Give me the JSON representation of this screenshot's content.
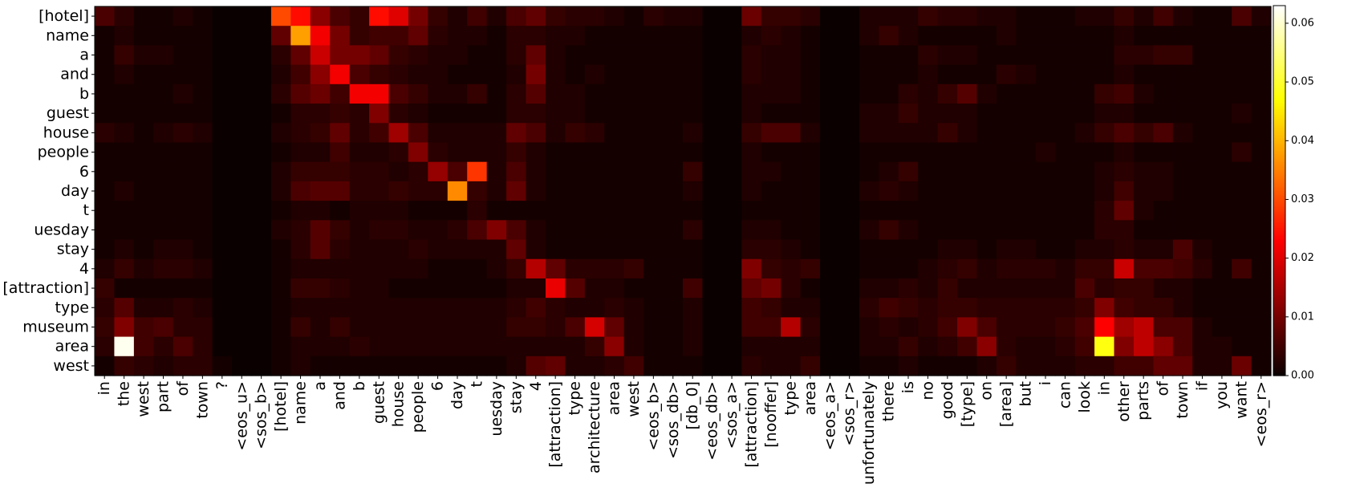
{
  "chart_data": {
    "type": "heatmap",
    "colormap": "hot",
    "vmin": 0.0,
    "vmax": 0.063,
    "grid": false,
    "colorbar_position": "right",
    "rows": [
      "[hotel]",
      "name",
      "a",
      "and",
      "b",
      "guest",
      "house",
      "people",
      "6",
      "day",
      "t",
      "uesday",
      "stay",
      "4",
      "[attraction]",
      "type",
      "museum",
      "area",
      "west"
    ],
    "columns": [
      "in",
      "the",
      "west",
      "part",
      "of",
      "town",
      "?",
      "<eos_u>",
      "<sos_b>",
      "[hotel]",
      "name",
      "a",
      "and",
      "b",
      "guest",
      "house",
      "people",
      "6",
      "day",
      "t",
      "uesday",
      "stay",
      "4",
      "[attraction]",
      "type",
      "architecture",
      "area",
      "west",
      "<eos_b>",
      "<sos_db>",
      "[db_0]",
      "<eos_db>",
      "<sos_a>",
      "[attraction]",
      "[nooffer]",
      "type",
      "area",
      "<eos_a>",
      "<sos_r>",
      "unfortunately",
      "there",
      "is",
      "no",
      "good",
      "[type]",
      "on",
      "[area]",
      "but",
      "i",
      "can",
      "look",
      "in",
      "other",
      "parts",
      "of",
      "town",
      "if",
      "you",
      "want",
      "<eos_r>"
    ],
    "colorbar_ticks": [
      "0.00",
      "0.01",
      "0.02",
      "0.03",
      "0.04",
      "0.05",
      "0.06"
    ],
    "values": [
      [
        0.006,
        0.003,
        0.001,
        0.001,
        0.002,
        0.001,
        0.0,
        0.0,
        0.0,
        0.03,
        0.024,
        0.012,
        0.006,
        0.004,
        0.024,
        0.02,
        0.01,
        0.004,
        0.002,
        0.005,
        0.002,
        0.006,
        0.008,
        0.004,
        0.003,
        0.003,
        0.002,
        0.001,
        0.003,
        0.002,
        0.002,
        0.0,
        0.0,
        0.009,
        0.004,
        0.004,
        0.003,
        0.0,
        0.0,
        0.002,
        0.002,
        0.002,
        0.004,
        0.003,
        0.003,
        0.002,
        0.002,
        0.001,
        0.001,
        0.001,
        0.002,
        0.002,
        0.004,
        0.002,
        0.005,
        0.002,
        0.001,
        0.001,
        0.006,
        0.002
      ],
      [
        0.001,
        0.002,
        0.001,
        0.001,
        0.001,
        0.001,
        0.0,
        0.0,
        0.0,
        0.008,
        0.038,
        0.022,
        0.01,
        0.004,
        0.005,
        0.005,
        0.008,
        0.003,
        0.002,
        0.002,
        0.001,
        0.003,
        0.003,
        0.002,
        0.002,
        0.001,
        0.001,
        0.001,
        0.001,
        0.001,
        0.001,
        0.0,
        0.0,
        0.002,
        0.003,
        0.002,
        0.001,
        0.0,
        0.0,
        0.002,
        0.004,
        0.002,
        0.001,
        0.001,
        0.001,
        0.001,
        0.002,
        0.001,
        0.001,
        0.001,
        0.001,
        0.001,
        0.002,
        0.001,
        0.001,
        0.001,
        0.001,
        0.001,
        0.001,
        0.001
      ],
      [
        0.001,
        0.004,
        0.002,
        0.002,
        0.001,
        0.001,
        0.0,
        0.0,
        0.0,
        0.003,
        0.008,
        0.018,
        0.01,
        0.01,
        0.008,
        0.004,
        0.003,
        0.002,
        0.002,
        0.001,
        0.001,
        0.003,
        0.008,
        0.002,
        0.001,
        0.001,
        0.001,
        0.001,
        0.001,
        0.001,
        0.001,
        0.0,
        0.0,
        0.003,
        0.002,
        0.002,
        0.001,
        0.0,
        0.0,
        0.001,
        0.001,
        0.001,
        0.003,
        0.002,
        0.002,
        0.001,
        0.001,
        0.001,
        0.001,
        0.001,
        0.001,
        0.001,
        0.003,
        0.003,
        0.004,
        0.004,
        0.001,
        0.001,
        0.001,
        0.001
      ],
      [
        0.001,
        0.002,
        0.001,
        0.001,
        0.001,
        0.001,
        0.0,
        0.0,
        0.0,
        0.002,
        0.005,
        0.012,
        0.022,
        0.006,
        0.004,
        0.003,
        0.002,
        0.002,
        0.001,
        0.001,
        0.001,
        0.002,
        0.01,
        0.002,
        0.001,
        0.002,
        0.001,
        0.001,
        0.001,
        0.001,
        0.001,
        0.0,
        0.0,
        0.003,
        0.002,
        0.002,
        0.001,
        0.0,
        0.0,
        0.001,
        0.001,
        0.001,
        0.002,
        0.001,
        0.001,
        0.001,
        0.003,
        0.002,
        0.001,
        0.001,
        0.001,
        0.001,
        0.002,
        0.001,
        0.001,
        0.001,
        0.001,
        0.001,
        0.001,
        0.001
      ],
      [
        0.001,
        0.001,
        0.001,
        0.001,
        0.002,
        0.001,
        0.0,
        0.0,
        0.0,
        0.003,
        0.007,
        0.009,
        0.005,
        0.022,
        0.022,
        0.006,
        0.004,
        0.002,
        0.002,
        0.004,
        0.001,
        0.003,
        0.007,
        0.002,
        0.002,
        0.001,
        0.001,
        0.001,
        0.001,
        0.001,
        0.001,
        0.0,
        0.0,
        0.002,
        0.002,
        0.002,
        0.001,
        0.0,
        0.0,
        0.001,
        0.001,
        0.003,
        0.002,
        0.004,
        0.007,
        0.002,
        0.001,
        0.001,
        0.001,
        0.001,
        0.001,
        0.004,
        0.005,
        0.002,
        0.001,
        0.001,
        0.001,
        0.001,
        0.001,
        0.001
      ],
      [
        0.001,
        0.001,
        0.001,
        0.001,
        0.001,
        0.001,
        0.0,
        0.0,
        0.0,
        0.001,
        0.003,
        0.003,
        0.004,
        0.003,
        0.011,
        0.003,
        0.002,
        0.001,
        0.001,
        0.001,
        0.001,
        0.003,
        0.003,
        0.002,
        0.002,
        0.001,
        0.001,
        0.001,
        0.001,
        0.001,
        0.001,
        0.0,
        0.0,
        0.002,
        0.001,
        0.001,
        0.001,
        0.0,
        0.0,
        0.002,
        0.002,
        0.004,
        0.002,
        0.002,
        0.002,
        0.001,
        0.001,
        0.001,
        0.001,
        0.001,
        0.001,
        0.002,
        0.002,
        0.001,
        0.001,
        0.001,
        0.001,
        0.001,
        0.002,
        0.001
      ],
      [
        0.003,
        0.002,
        0.001,
        0.002,
        0.003,
        0.002,
        0.0,
        0.0,
        0.0,
        0.002,
        0.003,
        0.004,
        0.008,
        0.003,
        0.005,
        0.014,
        0.006,
        0.002,
        0.002,
        0.002,
        0.002,
        0.008,
        0.006,
        0.002,
        0.004,
        0.003,
        0.001,
        0.001,
        0.001,
        0.001,
        0.002,
        0.0,
        0.0,
        0.004,
        0.006,
        0.006,
        0.002,
        0.0,
        0.0,
        0.002,
        0.002,
        0.002,
        0.002,
        0.004,
        0.002,
        0.001,
        0.001,
        0.001,
        0.001,
        0.001,
        0.002,
        0.004,
        0.006,
        0.004,
        0.006,
        0.002,
        0.001,
        0.001,
        0.001,
        0.001
      ],
      [
        0.001,
        0.001,
        0.001,
        0.001,
        0.001,
        0.001,
        0.0,
        0.0,
        0.0,
        0.001,
        0.002,
        0.002,
        0.005,
        0.002,
        0.002,
        0.003,
        0.011,
        0.003,
        0.002,
        0.002,
        0.002,
        0.004,
        0.002,
        0.001,
        0.001,
        0.001,
        0.001,
        0.001,
        0.001,
        0.001,
        0.001,
        0.0,
        0.0,
        0.002,
        0.001,
        0.001,
        0.001,
        0.0,
        0.0,
        0.001,
        0.001,
        0.001,
        0.001,
        0.001,
        0.001,
        0.001,
        0.001,
        0.001,
        0.002,
        0.001,
        0.001,
        0.001,
        0.002,
        0.001,
        0.001,
        0.001,
        0.001,
        0.001,
        0.003,
        0.001
      ],
      [
        0.001,
        0.001,
        0.001,
        0.001,
        0.001,
        0.001,
        0.0,
        0.0,
        0.0,
        0.002,
        0.004,
        0.004,
        0.004,
        0.003,
        0.003,
        0.002,
        0.003,
        0.013,
        0.006,
        0.028,
        0.002,
        0.006,
        0.002,
        0.001,
        0.001,
        0.001,
        0.001,
        0.001,
        0.001,
        0.001,
        0.004,
        0.0,
        0.0,
        0.002,
        0.002,
        0.001,
        0.001,
        0.0,
        0.0,
        0.001,
        0.002,
        0.004,
        0.001,
        0.001,
        0.001,
        0.001,
        0.001,
        0.001,
        0.001,
        0.001,
        0.001,
        0.002,
        0.003,
        0.002,
        0.002,
        0.001,
        0.001,
        0.001,
        0.001,
        0.001
      ],
      [
        0.001,
        0.002,
        0.001,
        0.001,
        0.001,
        0.001,
        0.0,
        0.0,
        0.0,
        0.002,
        0.006,
        0.007,
        0.007,
        0.003,
        0.003,
        0.004,
        0.003,
        0.003,
        0.036,
        0.004,
        0.002,
        0.008,
        0.002,
        0.001,
        0.001,
        0.001,
        0.001,
        0.001,
        0.001,
        0.001,
        0.002,
        0.0,
        0.0,
        0.002,
        0.001,
        0.001,
        0.001,
        0.0,
        0.0,
        0.002,
        0.003,
        0.002,
        0.001,
        0.001,
        0.001,
        0.001,
        0.001,
        0.001,
        0.001,
        0.001,
        0.001,
        0.002,
        0.005,
        0.002,
        0.002,
        0.001,
        0.001,
        0.001,
        0.001,
        0.001
      ],
      [
        0.001,
        0.001,
        0.001,
        0.001,
        0.001,
        0.001,
        0.0,
        0.0,
        0.0,
        0.001,
        0.002,
        0.002,
        0.001,
        0.002,
        0.002,
        0.002,
        0.001,
        0.001,
        0.001,
        0.003,
        0.001,
        0.001,
        0.001,
        0.001,
        0.001,
        0.001,
        0.001,
        0.001,
        0.001,
        0.001,
        0.001,
        0.0,
        0.0,
        0.001,
        0.001,
        0.001,
        0.001,
        0.0,
        0.0,
        0.001,
        0.001,
        0.001,
        0.001,
        0.001,
        0.001,
        0.001,
        0.001,
        0.001,
        0.001,
        0.001,
        0.001,
        0.003,
        0.008,
        0.002,
        0.001,
        0.001,
        0.001,
        0.001,
        0.001,
        0.001
      ],
      [
        0.001,
        0.001,
        0.001,
        0.001,
        0.001,
        0.001,
        0.0,
        0.0,
        0.0,
        0.002,
        0.003,
        0.007,
        0.004,
        0.002,
        0.003,
        0.003,
        0.002,
        0.002,
        0.003,
        0.006,
        0.011,
        0.006,
        0.002,
        0.001,
        0.001,
        0.001,
        0.001,
        0.001,
        0.001,
        0.001,
        0.003,
        0.0,
        0.0,
        0.002,
        0.002,
        0.001,
        0.001,
        0.0,
        0.0,
        0.002,
        0.004,
        0.002,
        0.001,
        0.001,
        0.001,
        0.001,
        0.001,
        0.001,
        0.001,
        0.001,
        0.001,
        0.003,
        0.003,
        0.001,
        0.001,
        0.001,
        0.001,
        0.001,
        0.001,
        0.001
      ],
      [
        0.001,
        0.002,
        0.001,
        0.002,
        0.002,
        0.001,
        0.0,
        0.0,
        0.0,
        0.001,
        0.003,
        0.007,
        0.003,
        0.002,
        0.002,
        0.002,
        0.003,
        0.002,
        0.002,
        0.002,
        0.002,
        0.008,
        0.002,
        0.001,
        0.001,
        0.001,
        0.001,
        0.001,
        0.001,
        0.001,
        0.001,
        0.0,
        0.0,
        0.003,
        0.003,
        0.002,
        0.001,
        0.0,
        0.0,
        0.001,
        0.001,
        0.001,
        0.001,
        0.002,
        0.002,
        0.001,
        0.002,
        0.002,
        0.001,
        0.001,
        0.002,
        0.002,
        0.003,
        0.002,
        0.002,
        0.006,
        0.002,
        0.001,
        0.001,
        0.001
      ],
      [
        0.002,
        0.004,
        0.002,
        0.003,
        0.003,
        0.002,
        0.0,
        0.0,
        0.0,
        0.001,
        0.002,
        0.002,
        0.002,
        0.002,
        0.002,
        0.002,
        0.002,
        0.001,
        0.001,
        0.001,
        0.002,
        0.004,
        0.016,
        0.008,
        0.003,
        0.003,
        0.003,
        0.004,
        0.001,
        0.001,
        0.001,
        0.0,
        0.0,
        0.011,
        0.004,
        0.003,
        0.004,
        0.0,
        0.0,
        0.001,
        0.001,
        0.001,
        0.002,
        0.003,
        0.004,
        0.002,
        0.003,
        0.003,
        0.003,
        0.002,
        0.004,
        0.004,
        0.018,
        0.006,
        0.006,
        0.005,
        0.003,
        0.001,
        0.005,
        0.001
      ],
      [
        0.004,
        0.001,
        0.001,
        0.001,
        0.001,
        0.001,
        0.0,
        0.0,
        0.0,
        0.001,
        0.004,
        0.004,
        0.003,
        0.002,
        0.002,
        0.001,
        0.001,
        0.001,
        0.001,
        0.001,
        0.001,
        0.002,
        0.002,
        0.021,
        0.007,
        0.002,
        0.002,
        0.001,
        0.001,
        0.001,
        0.005,
        0.0,
        0.0,
        0.008,
        0.01,
        0.003,
        0.001,
        0.0,
        0.0,
        0.002,
        0.002,
        0.003,
        0.002,
        0.004,
        0.002,
        0.002,
        0.002,
        0.002,
        0.002,
        0.002,
        0.006,
        0.003,
        0.004,
        0.004,
        0.002,
        0.002,
        0.001,
        0.001,
        0.001,
        0.001
      ],
      [
        0.003,
        0.007,
        0.002,
        0.002,
        0.003,
        0.002,
        0.0,
        0.0,
        0.0,
        0.001,
        0.002,
        0.002,
        0.002,
        0.002,
        0.002,
        0.002,
        0.002,
        0.002,
        0.002,
        0.002,
        0.002,
        0.003,
        0.005,
        0.003,
        0.002,
        0.002,
        0.003,
        0.002,
        0.001,
        0.001,
        0.002,
        0.0,
        0.0,
        0.005,
        0.004,
        0.002,
        0.002,
        0.0,
        0.0,
        0.003,
        0.005,
        0.004,
        0.003,
        0.004,
        0.004,
        0.003,
        0.003,
        0.003,
        0.003,
        0.003,
        0.004,
        0.011,
        0.005,
        0.004,
        0.004,
        0.002,
        0.001,
        0.001,
        0.001,
        0.001
      ],
      [
        0.004,
        0.011,
        0.005,
        0.006,
        0.003,
        0.003,
        0.0,
        0.0,
        0.0,
        0.001,
        0.004,
        0.002,
        0.004,
        0.002,
        0.002,
        0.002,
        0.002,
        0.002,
        0.002,
        0.002,
        0.002,
        0.004,
        0.004,
        0.003,
        0.006,
        0.019,
        0.008,
        0.002,
        0.001,
        0.001,
        0.002,
        0.0,
        0.0,
        0.005,
        0.005,
        0.016,
        0.003,
        0.0,
        0.0,
        0.002,
        0.003,
        0.002,
        0.003,
        0.005,
        0.011,
        0.006,
        0.003,
        0.003,
        0.003,
        0.004,
        0.006,
        0.023,
        0.014,
        0.017,
        0.006,
        0.006,
        0.002,
        0.001,
        0.001,
        0.001
      ],
      [
        0.003,
        0.062,
        0.005,
        0.003,
        0.006,
        0.003,
        0.0,
        0.0,
        0.0,
        0.001,
        0.002,
        0.002,
        0.002,
        0.003,
        0.002,
        0.002,
        0.002,
        0.002,
        0.002,
        0.002,
        0.002,
        0.002,
        0.002,
        0.002,
        0.002,
        0.004,
        0.012,
        0.002,
        0.001,
        0.001,
        0.002,
        0.0,
        0.0,
        0.002,
        0.002,
        0.002,
        0.002,
        0.0,
        0.0,
        0.002,
        0.002,
        0.004,
        0.002,
        0.003,
        0.005,
        0.012,
        0.003,
        0.002,
        0.002,
        0.003,
        0.005,
        0.048,
        0.011,
        0.017,
        0.012,
        0.006,
        0.002,
        0.002,
        0.001,
        0.001
      ],
      [
        0.001,
        0.004,
        0.003,
        0.002,
        0.003,
        0.003,
        0.001,
        0.0,
        0.0,
        0.001,
        0.002,
        0.001,
        0.001,
        0.001,
        0.001,
        0.001,
        0.001,
        0.001,
        0.001,
        0.001,
        0.001,
        0.002,
        0.007,
        0.008,
        0.002,
        0.002,
        0.003,
        0.005,
        0.001,
        0.001,
        0.001,
        0.0,
        0.0,
        0.003,
        0.002,
        0.002,
        0.004,
        0.0,
        0.0,
        0.001,
        0.001,
        0.002,
        0.001,
        0.001,
        0.001,
        0.002,
        0.004,
        0.002,
        0.002,
        0.002,
        0.003,
        0.003,
        0.005,
        0.005,
        0.008,
        0.008,
        0.002,
        0.002,
        0.009,
        0.001
      ]
    ]
  }
}
